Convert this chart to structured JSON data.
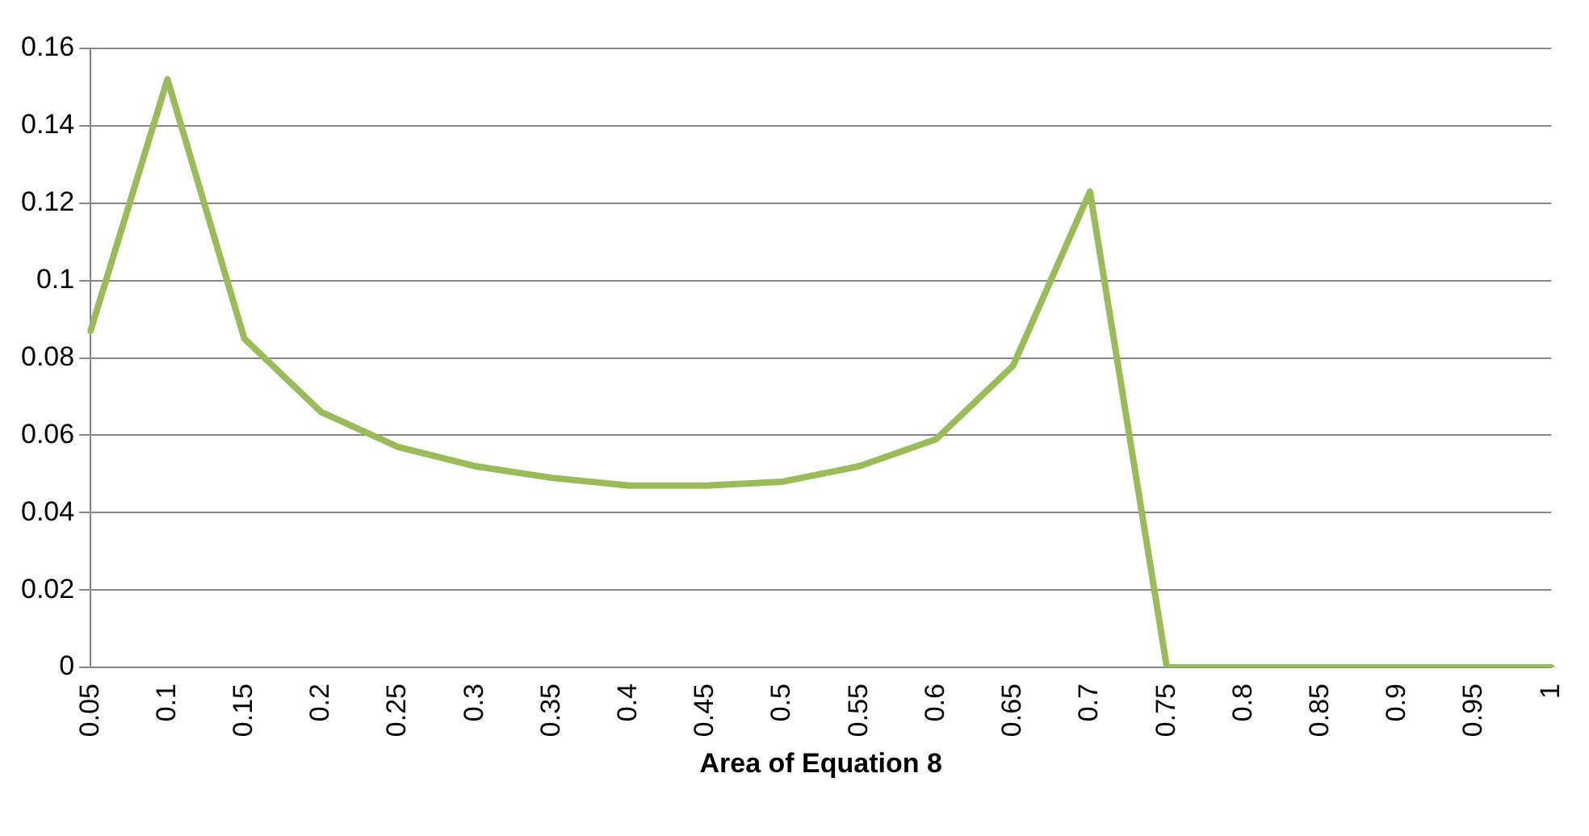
{
  "chart_data": {
    "type": "line",
    "xlabel": "Area of Equation 8",
    "categories": [
      "0.05",
      "0.1",
      "0.15",
      "0.2",
      "0.25",
      "0.3",
      "0.35",
      "0.4",
      "0.45",
      "0.5",
      "0.55",
      "0.6",
      "0.65",
      "0.7",
      "0.75",
      "0.8",
      "0.85",
      "0.9",
      "0.95",
      "1"
    ],
    "series": [
      {
        "color": "#9bbb59",
        "values": [
          0.087,
          0.152,
          0.085,
          0.066,
          0.057,
          0.052,
          0.049,
          0.047,
          0.047,
          0.048,
          0.052,
          0.059,
          0.078,
          0.123,
          0,
          0,
          0,
          0,
          0,
          0
        ]
      }
    ],
    "ylim": [
      0,
      0.16
    ],
    "yticks": [
      0,
      0.02,
      0.04,
      0.06,
      0.08,
      0.1,
      0.12,
      0.14,
      0.16
    ],
    "grid": "y",
    "legend": false,
    "marker": "none",
    "line_style": "solid"
  }
}
